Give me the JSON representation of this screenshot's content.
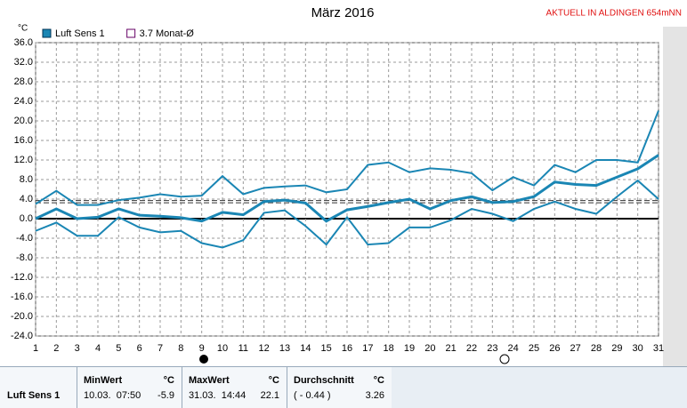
{
  "chart_data": {
    "type": "line",
    "title": "März 2016",
    "subtitle": "AKTUELL IN ALDINGEN 654mNN",
    "y_unit": "°C",
    "x": [
      1,
      2,
      3,
      4,
      5,
      6,
      7,
      8,
      9,
      10,
      11,
      12,
      13,
      14,
      15,
      16,
      17,
      18,
      19,
      20,
      21,
      22,
      23,
      24,
      25,
      26,
      27,
      28,
      29,
      30,
      31
    ],
    "xlim": [
      1,
      31
    ],
    "ylim": [
      -24,
      36
    ],
    "yticks": [
      {
        "value": -24,
        "label": "-24.0"
      },
      {
        "value": -20,
        "label": "-20.0"
      },
      {
        "value": -16,
        "label": "-16.0"
      },
      {
        "value": -12,
        "label": "-12.0"
      },
      {
        "value": -8,
        "label": "-8.0"
      },
      {
        "value": -4,
        "label": "-4.0"
      },
      {
        "value": 0,
        "label": "0.0"
      },
      {
        "value": 4,
        "label": "4.0"
      },
      {
        "value": 8,
        "label": "8.0"
      },
      {
        "value": 12,
        "label": "12.0"
      },
      {
        "value": 16,
        "label": "16.0"
      },
      {
        "value": 20,
        "label": "20.0"
      },
      {
        "value": 24,
        "label": "24.0"
      },
      {
        "value": 28,
        "label": "28.0"
      },
      {
        "value": 32,
        "label": "32.0"
      },
      {
        "value": 36,
        "label": "36.0"
      }
    ],
    "grid": true,
    "legend": "top-left",
    "series": [
      {
        "color": "#1a86b4",
        "values": [
          3,
          5.7,
          2.8,
          2.8,
          3.8,
          4.3,
          5,
          4.5,
          4.7,
          8.7,
          5,
          6.3,
          6.6,
          6.8,
          5.4,
          6,
          11,
          11.5,
          9.5,
          10.3,
          10,
          9.3,
          5.8,
          8.5,
          6.8,
          11,
          9.5,
          12,
          12,
          11.5,
          22.1
        ]
      },
      {
        "name": "Luft Sens 1",
        "color": "#1a86b4",
        "width": 3,
        "values": [
          0,
          2,
          0,
          0.3,
          2,
          0.7,
          0.5,
          0.2,
          -0.5,
          1.3,
          0.8,
          3.5,
          3.8,
          3.2,
          -0.5,
          1.8,
          2.5,
          3.3,
          4,
          2,
          3.7,
          4.5,
          3.3,
          3.5,
          4.5,
          7.5,
          7,
          6.8,
          8.5,
          10.2,
          13
        ]
      },
      {
        "color": "#1a86b4",
        "values": [
          -2.5,
          -0.8,
          -3.5,
          -3.5,
          0.3,
          -1.8,
          -2.8,
          -2.5,
          -5,
          -5.9,
          -4.4,
          1.2,
          1.7,
          -1.5,
          -5.3,
          0.3,
          -5.3,
          -5,
          -1.8,
          -1.8,
          -0.3,
          2,
          1,
          -0.5,
          2,
          3.5,
          2,
          1,
          4.5,
          7.8,
          4
        ]
      }
    ],
    "reference_line": {
      "value": 3.7,
      "label": "3.7 Monat-Ø"
    }
  },
  "table": {
    "row_label": "Luft Sens 1",
    "columns": [
      {
        "header": "MinWert",
        "unit": "°C",
        "date": "10.03.  07:50",
        "value": -5.9
      },
      {
        "header": "MaxWert",
        "unit": "°C",
        "date": "31.03.  14:44",
        "value": 22.1
      },
      {
        "header": "Durchschnitt",
        "unit": "°C",
        "date": "( - 0.44 )",
        "value": 3.26
      }
    ]
  }
}
